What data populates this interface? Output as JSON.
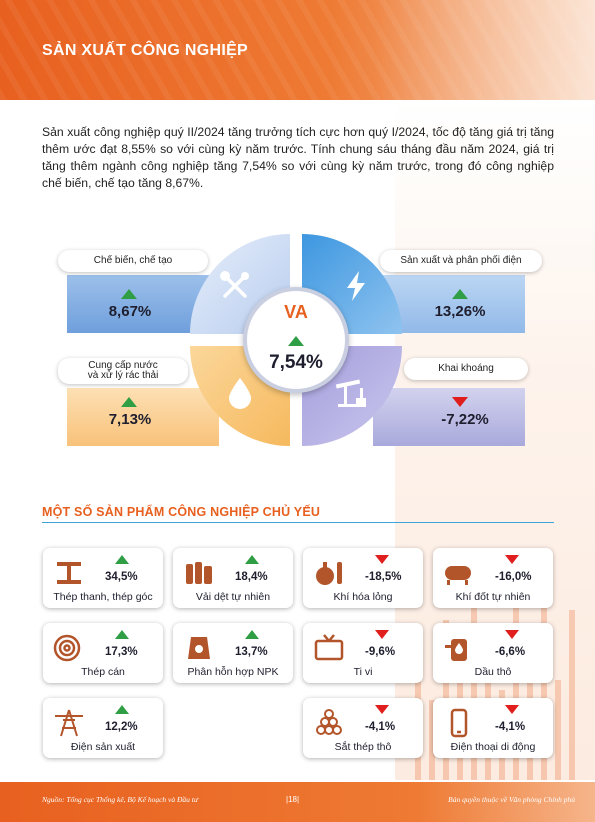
{
  "header": {
    "title": "SẢN XUẤT CÔNG NGHIỆP"
  },
  "intro": "Sản xuất công nghiệp quý II/2024 tăng trưởng tích cực hơn quý I/2024, tốc độ tăng giá trị tăng thêm ước đạt 8,55% so với cùng kỳ năm trước. Tính chung sáu tháng đầu năm 2024, giá trị tăng thêm ngành công nghiệp tăng 7,54% so với cùng kỳ năm trước, trong đó công nghiệp chế biến, chế tạo tăng 8,67%.",
  "center": {
    "label": "VA",
    "value": "7,54%",
    "trend": "up"
  },
  "sectors": [
    {
      "name": "Chế biến, chế tạo",
      "value": "8,67%",
      "trend": "up",
      "icon": "tools-icon"
    },
    {
      "name": "Sản xuất và phân phối điện",
      "value": "13,26%",
      "trend": "up",
      "icon": "lightning-icon"
    },
    {
      "name_line1": "Cung cấp nước",
      "name_line2": "và xử lý rác thải",
      "value": "7,13%",
      "trend": "up",
      "icon": "water-drop-icon"
    },
    {
      "name": "Khai khoáng",
      "value": "-7,22%",
      "trend": "down",
      "icon": "oil-pump-icon"
    }
  ],
  "products_title": "MỘT SỐ SẢN PHẨM CÔNG NGHIỆP CHỦ YẾU",
  "products": [
    {
      "name": "Thép thanh, thép góc",
      "value": "34,5%",
      "trend": "up",
      "icon": "steel-beam-icon"
    },
    {
      "name": "Vải dệt tự nhiên",
      "value": "18,4%",
      "trend": "up",
      "icon": "fabric-icon"
    },
    {
      "name": "Khí hóa lỏng",
      "value": "-18,5%",
      "trend": "down",
      "icon": "gas-cylinder-icon"
    },
    {
      "name": "Khí đốt tự nhiên",
      "value": "-16,0%",
      "trend": "down",
      "icon": "gas-tank-icon"
    },
    {
      "name": "Thép cán",
      "value": "17,3%",
      "trend": "up",
      "icon": "steel-coil-icon"
    },
    {
      "name": "Phân hỗn hợp NPK",
      "value": "13,7%",
      "trend": "up",
      "icon": "fertilizer-bag-icon"
    },
    {
      "name": "Ti vi",
      "value": "-9,6%",
      "trend": "down",
      "icon": "tv-icon"
    },
    {
      "name": "Dầu thô",
      "value": "-6,6%",
      "trend": "down",
      "icon": "oil-barrel-icon"
    },
    {
      "name": "Điện sản xuất",
      "value": "12,2%",
      "trend": "up",
      "icon": "power-tower-icon"
    },
    {
      "name": "Sắt thép thô",
      "value": "-4,1%",
      "trend": "down",
      "icon": "steel-pipes-icon"
    },
    {
      "name": "Điện thoại di động",
      "value": "-4,1%",
      "trend": "down",
      "icon": "mobile-phone-icon"
    }
  ],
  "footer": {
    "source": "Nguồn: Tổng cục Thống kê, Bộ Kế hoạch và Đầu tư",
    "page": "|18|",
    "copyright": "Bản quyền thuộc về Văn phòng Chính phủ"
  },
  "colors": {
    "accent": "#e8601f",
    "up": "#2f9e44",
    "down": "#e01e1e",
    "line": "#3fa4d8"
  }
}
